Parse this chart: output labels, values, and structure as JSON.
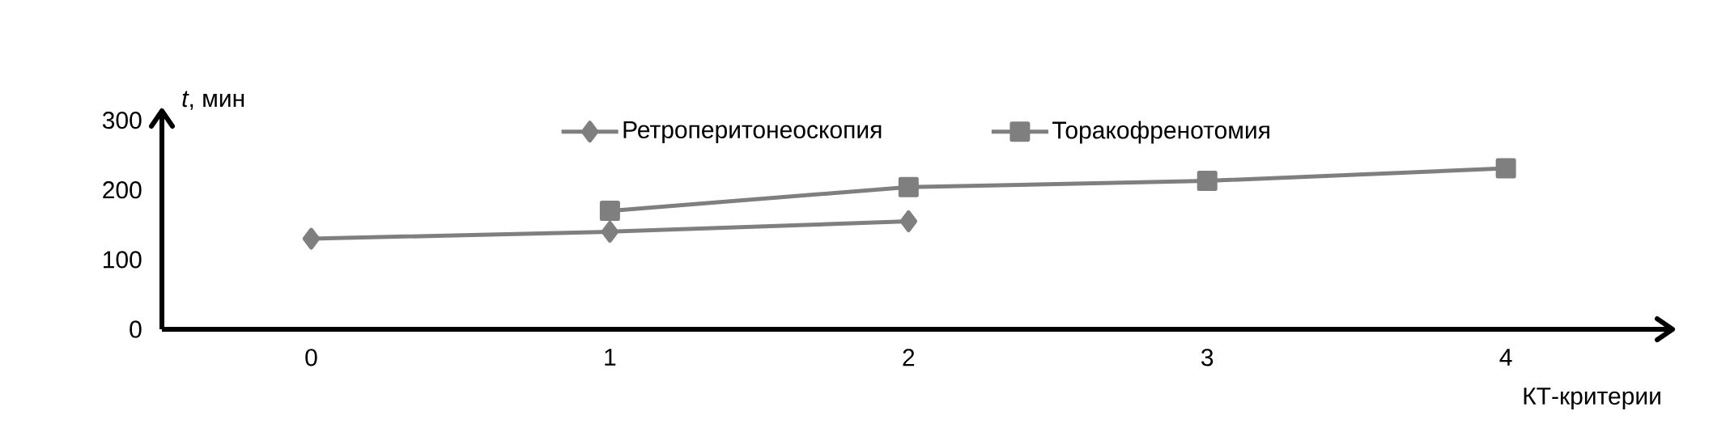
{
  "chart_data": {
    "type": "line",
    "xlabel": "КТ-критерии",
    "ylabel": "*t*, мин",
    "series": [
      {
        "name": "Ретроперитонеоскопия",
        "color": "#7f7f7f",
        "marker": "diamond",
        "x": [
          0,
          1,
          2
        ],
        "values": [
          130,
          140,
          155
        ]
      },
      {
        "name": "Торакофренотомия",
        "color": "#7f7f7f",
        "marker": "square",
        "x": [
          1,
          2,
          3,
          4
        ],
        "values": [
          170,
          204,
          213,
          231
        ]
      }
    ],
    "xlim": [
      -0.5,
      4.55
    ],
    "xticks": [
      0,
      1,
      2,
      3,
      4
    ],
    "ylim": [
      0,
      310
    ],
    "yticks": [
      0,
      100,
      200,
      300
    ],
    "legend": "top",
    "grid": false
  }
}
